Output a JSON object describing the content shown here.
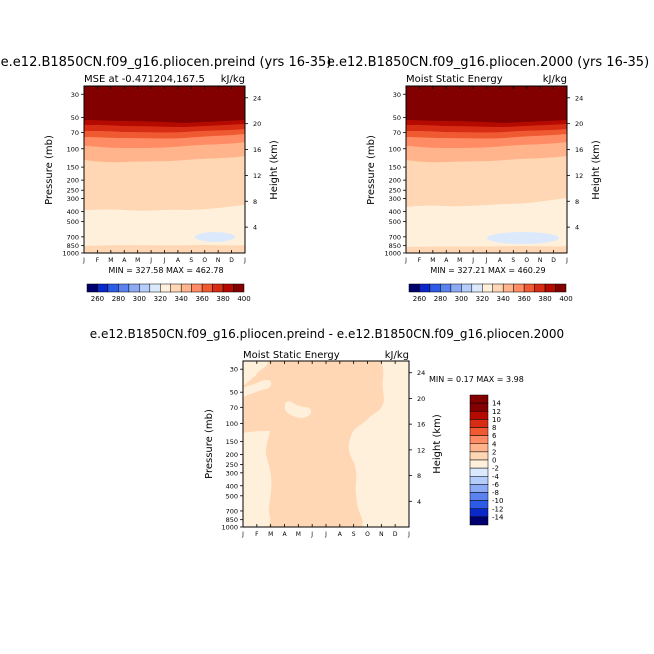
{
  "chart_data": [
    {
      "type": "heatmap",
      "title": "e.e12.B1850CN.f09_g16.pliocen.preind (yrs 16-35)",
      "subtitle_left": "MSE at -0.471204,167.5",
      "subtitle_right": "kJ/kg",
      "ylabel": "Pressure (mb)",
      "y2label": "Height (km)",
      "x_ticks": [
        "J",
        "F",
        "M",
        "A",
        "M",
        "J",
        "J",
        "A",
        "S",
        "O",
        "N",
        "D",
        "J"
      ],
      "y_ticks": [
        "30",
        "50",
        "70",
        "100",
        "150",
        "200",
        "250",
        "300",
        "400",
        "500",
        "700",
        "850",
        "1000"
      ],
      "y2_ticks": [
        "24",
        "20",
        "16",
        "12",
        "8",
        "4"
      ],
      "stats": "MIN = 327.58 MAX = 462.78",
      "colorbar_ticks": [
        "260",
        "280",
        "300",
        "320",
        "340",
        "360",
        "380",
        "400"
      ]
    },
    {
      "type": "heatmap",
      "title": "e.e12.B1850CN.f09_g16.pliocen.2000 (yrs 16-35)",
      "subtitle_left": "Moist Static Energy",
      "subtitle_right": "kJ/kg",
      "ylabel": "Pressure (mb)",
      "y2label": "Height (km)",
      "x_ticks": [
        "J",
        "F",
        "M",
        "A",
        "M",
        "J",
        "J",
        "A",
        "S",
        "O",
        "N",
        "D",
        "J"
      ],
      "y_ticks": [
        "30",
        "50",
        "70",
        "100",
        "150",
        "200",
        "250",
        "300",
        "400",
        "500",
        "700",
        "850",
        "1000"
      ],
      "y2_ticks": [
        "24",
        "20",
        "16",
        "12",
        "8",
        "4"
      ],
      "stats": "MIN = 327.21 MAX = 460.29",
      "colorbar_ticks": [
        "260",
        "280",
        "300",
        "320",
        "340",
        "360",
        "380",
        "400"
      ]
    },
    {
      "type": "heatmap",
      "title": "e.e12.B1850CN.f09_g16.pliocen.preind - e.e12.B1850CN.f09_g16.pliocen.2000",
      "subtitle_left": "Moist Static Energy",
      "subtitle_right": "kJ/kg",
      "ylabel": "Pressure (mb)",
      "y2label": "Height (km)",
      "x_ticks": [
        "J",
        "F",
        "M",
        "A",
        "M",
        "J",
        "J",
        "A",
        "S",
        "O",
        "N",
        "D",
        "J"
      ],
      "y_ticks": [
        "30",
        "50",
        "70",
        "100",
        "150",
        "200",
        "250",
        "300",
        "400",
        "500",
        "700",
        "850",
        "1000"
      ],
      "y2_ticks": [
        "24",
        "20",
        "16",
        "12",
        "8",
        "4"
      ],
      "stats": "MIN =    0.17  MAX =     3.98",
      "colorbar_ticks": [
        "14",
        "12",
        "10",
        "8",
        "6",
        "4",
        "2",
        "0",
        "-2",
        "-4",
        "-6",
        "-8",
        "-10",
        "-12",
        "-14"
      ]
    }
  ],
  "colors": {
    "mse_scale": [
      "#00006e",
      "#0a28c8",
      "#2d5ae6",
      "#5a82f0",
      "#8caaf5",
      "#b4cdfa",
      "#dce9fc",
      "#fff0dc",
      "#ffd7b4",
      "#ffb48c",
      "#ff8c64",
      "#f05a32",
      "#d72d14",
      "#b40a00",
      "#820000"
    ],
    "diff_scale": [
      "#820000",
      "#b40a00",
      "#d72d14",
      "#f05a32",
      "#ff8c64",
      "#ffb48c",
      "#ffd7b4",
      "#fff0dc",
      "#dce9fc",
      "#b4cdfa",
      "#8caaf5",
      "#5a82f0",
      "#2d5ae6",
      "#0a28c8",
      "#00006e"
    ],
    "axis": "#000000",
    "background": "#ffffff"
  }
}
